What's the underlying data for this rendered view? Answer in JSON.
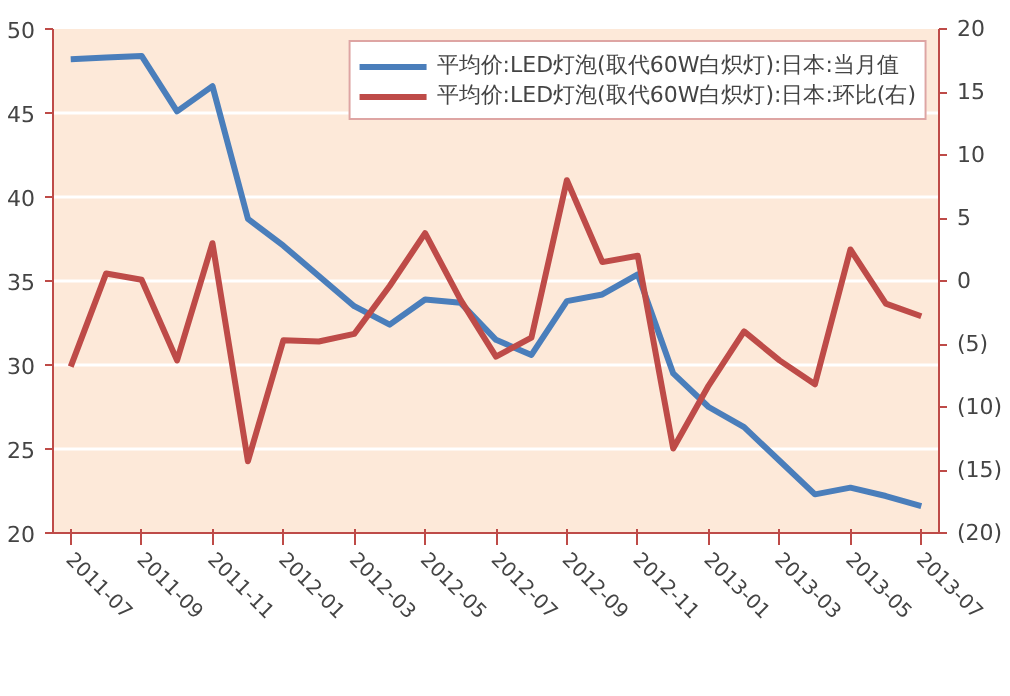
{
  "chart_data": {
    "type": "line",
    "categories": [
      "2011-07",
      null,
      "2011-09",
      null,
      "2011-11",
      null,
      "2012-01",
      null,
      "2012-03",
      null,
      "2012-05",
      null,
      "2012-07",
      null,
      "2012-09",
      null,
      "2012-11",
      null,
      "2013-01",
      null,
      "2013-03",
      null,
      "2013-05",
      null,
      "2013-07"
    ],
    "series": [
      {
        "name": "平均价:LED灯泡(取代60W白炽灯):日本:当月值",
        "color": "#4a7ebb",
        "values": [
          48.2,
          48.3,
          48.4,
          45.1,
          46.6,
          38.7,
          37.1,
          35.3,
          33.5,
          32.4,
          33.9,
          33.7,
          31.5,
          30.6,
          33.8,
          34.2,
          35.4,
          29.5,
          27.5,
          26.3,
          24.3,
          22.3,
          22.7,
          22.2,
          21.6
        ]
      },
      {
        "name": "平均价:LED灯泡(取代60W白炽灯):日本:环比(右)",
        "color": "#be4b48",
        "axis": "y2",
        "values": [
          -6.8,
          0.6,
          0.1,
          -6.3,
          3.0,
          -14.3,
          -4.7,
          -4.8,
          -4.2,
          -0.4,
          3.8,
          -1.5,
          -6.0,
          -4.5,
          8.0,
          1.5,
          2.0,
          -13.3,
          -8.3,
          -4.0,
          -6.3,
          -8.2,
          2.5,
          -1.8,
          -2.8
        ]
      }
    ],
    "ylim": [
      20,
      50
    ],
    "yticks": [
      20,
      25,
      30,
      35,
      40,
      45,
      50
    ],
    "y2lim": [
      -20,
      20
    ],
    "y2ticks": [
      {
        "value": -20,
        "label": "(20)"
      },
      {
        "value": -15,
        "label": "(15)"
      },
      {
        "value": -10,
        "label": "(10)"
      },
      {
        "value": -5,
        "label": "(5)"
      },
      0,
      5,
      10,
      15,
      20
    ],
    "grid": "y",
    "legend": "top right",
    "marker": "none",
    "line_style": "solid"
  }
}
